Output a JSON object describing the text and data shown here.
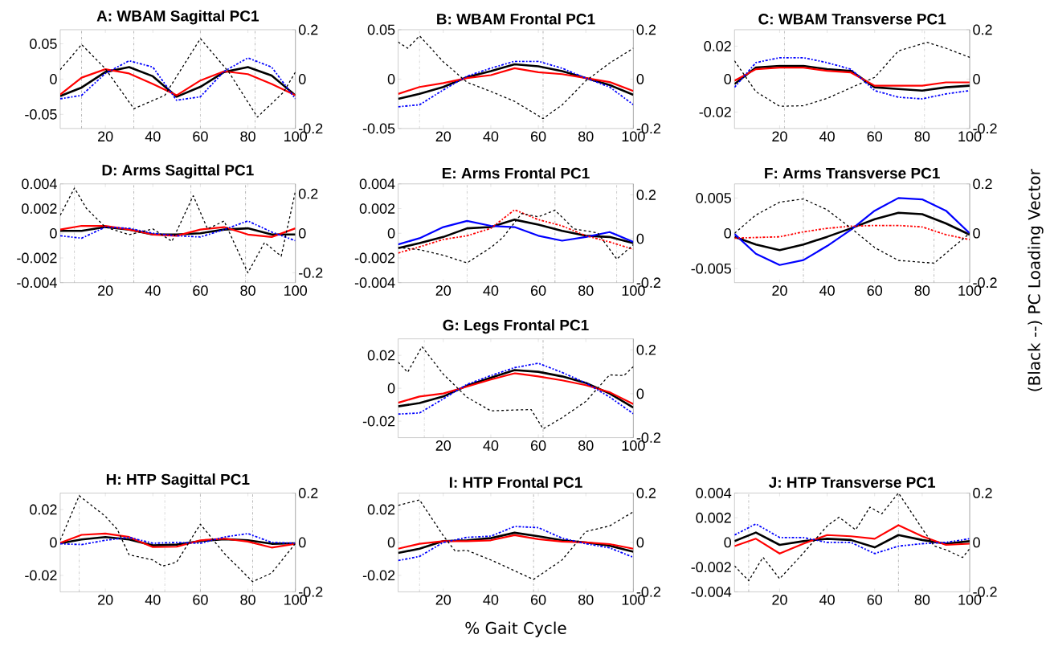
{
  "chart_data": [
    {
      "type": "line",
      "title": "A: WBAM Sagittal PC1",
      "x": [
        1,
        10,
        20,
        30,
        40,
        50,
        60,
        70,
        80,
        90,
        100
      ],
      "xlim": [
        1,
        100
      ],
      "xticks": [
        20,
        40,
        60,
        80,
        100
      ],
      "ylim": [
        -0.07,
        0.07
      ],
      "yticks": [
        -0.05,
        0,
        0.05
      ],
      "y2lim": [
        -0.2,
        0.2
      ],
      "y2ticks": [
        -0.2,
        0,
        0.2
      ],
      "ref_lines": [
        {
          "axis": "x",
          "value": 10,
          "color": "#808080",
          "line_style": "dashdot"
        },
        {
          "axis": "x",
          "value": 32,
          "color": "#808080",
          "line_style": "dashdot"
        },
        {
          "axis": "x",
          "value": 60,
          "color": "#808080",
          "line_style": "dashdot"
        },
        {
          "axis": "x",
          "value": 83,
          "color": "#808080",
          "line_style": "dashdot"
        }
      ],
      "series": [
        {
          "color": "#000000",
          "line_style": "solid",
          "values": [
            -0.024,
            -0.012,
            0.01,
            0.017,
            0.004,
            -0.025,
            -0.011,
            0.01,
            0.017,
            0.005,
            -0.023
          ]
        },
        {
          "color": "#ff0000",
          "line_style": "solid",
          "values": [
            -0.022,
            0.002,
            0.014,
            0.008,
            -0.007,
            -0.023,
            -0.002,
            0.011,
            0.007,
            -0.007,
            -0.023
          ]
        },
        {
          "color": "#0000ff",
          "line_style": "dashdot",
          "values": [
            -0.028,
            -0.023,
            0.008,
            0.026,
            0.017,
            -0.03,
            -0.025,
            0.011,
            0.03,
            0.017,
            -0.028
          ]
        },
        {
          "color": "#000000",
          "line_style": "dashed",
          "axis": "y2",
          "x": [
            1,
            10,
            20,
            32,
            45,
            60,
            72,
            84,
            95,
            100
          ],
          "values": [
            0.038,
            0.14,
            0.042,
            -0.12,
            -0.066,
            0.164,
            0.028,
            -0.154,
            -0.053,
            0.028
          ]
        }
      ]
    },
    {
      "type": "line",
      "title": "B: WBAM Frontal PC1",
      "x": [
        1,
        10,
        20,
        30,
        40,
        50,
        60,
        70,
        80,
        90,
        100
      ],
      "xlim": [
        1,
        100
      ],
      "xticks": [
        20,
        40,
        60,
        80,
        100
      ],
      "ylim": [
        -0.05,
        0.05
      ],
      "yticks": [
        -0.05,
        0,
        0.05
      ],
      "y2lim": [
        -0.2,
        0.2
      ],
      "y2ticks": [
        -0.2,
        0,
        0.2
      ],
      "ref_lines": [
        {
          "axis": "x",
          "value": 10,
          "color": "#808080",
          "line_style": "dashdot"
        },
        {
          "axis": "x",
          "value": 62,
          "color": "#808080",
          "line_style": "dashdot"
        }
      ],
      "series": [
        {
          "color": "#000000",
          "line_style": "solid",
          "values": [
            -0.02,
            -0.015,
            -0.008,
            0.002,
            0.008,
            0.015,
            0.013,
            0.008,
            0.001,
            -0.006,
            -0.016
          ]
        },
        {
          "color": "#ff0000",
          "line_style": "solid",
          "values": [
            -0.015,
            -0.008,
            -0.004,
            0.001,
            0.004,
            0.011,
            0.007,
            0.005,
            0.001,
            -0.003,
            -0.012
          ]
        },
        {
          "color": "#0000ff",
          "line_style": "dashdot",
          "values": [
            -0.028,
            -0.026,
            -0.011,
            0.003,
            0.011,
            0.018,
            0.018,
            0.011,
            0.001,
            -0.008,
            -0.026
          ]
        },
        {
          "color": "#000000",
          "line_style": "dashed",
          "axis": "y2",
          "x": [
            1,
            5,
            10,
            20,
            30,
            40,
            50,
            62,
            70,
            80,
            90,
            100
          ],
          "values": [
            0.15,
            0.125,
            0.175,
            0.07,
            -0.013,
            -0.05,
            -0.09,
            -0.16,
            -0.105,
            -0.007,
            0.065,
            0.125
          ]
        }
      ]
    },
    {
      "type": "line",
      "title": "C: WBAM Transverse PC1",
      "x": [
        1,
        10,
        20,
        30,
        40,
        50,
        60,
        70,
        80,
        90,
        100
      ],
      "xlim": [
        1,
        100
      ],
      "xticks": [
        20,
        40,
        60,
        80,
        100
      ],
      "ylim": [
        -0.03,
        0.03
      ],
      "yticks": [
        -0.02,
        0,
        0.02
      ],
      "y2lim": [
        -0.2,
        0.2
      ],
      "y2ticks": [
        -0.2,
        0,
        0.2
      ],
      "ref_lines": [
        {
          "axis": "x",
          "value": 22,
          "color": "#808080",
          "line_style": "dashdot"
        },
        {
          "axis": "x",
          "value": 81,
          "color": "#808080",
          "line_style": "dashdot"
        }
      ],
      "series": [
        {
          "color": "#000000",
          "line_style": "solid",
          "values": [
            -0.003,
            0.007,
            0.008,
            0.008,
            0.006,
            0.005,
            -0.005,
            -0.006,
            -0.007,
            -0.005,
            -0.004
          ]
        },
        {
          "color": "#ff0000",
          "line_style": "solid",
          "values": [
            -0.001,
            0.006,
            0.007,
            0.007,
            0.005,
            0.004,
            -0.004,
            -0.004,
            -0.004,
            -0.002,
            -0.002
          ]
        },
        {
          "color": "#0000ff",
          "line_style": "dashdot",
          "values": [
            -0.005,
            0.01,
            0.013,
            0.013,
            0.01,
            0.006,
            -0.007,
            -0.011,
            -0.012,
            -0.009,
            -0.007
          ]
        },
        {
          "color": "#000000",
          "line_style": "dashed",
          "axis": "y2",
          "x": [
            1,
            10,
            20,
            30,
            40,
            50,
            60,
            70,
            82,
            90,
            100
          ],
          "values": [
            0.074,
            -0.051,
            -0.11,
            -0.108,
            -0.078,
            -0.035,
            0.007,
            0.114,
            0.149,
            0.125,
            0.088
          ]
        }
      ]
    },
    {
      "type": "line",
      "title": "D: Arms Sagittal PC1",
      "x": [
        1,
        10,
        20,
        30,
        40,
        50,
        60,
        70,
        80,
        90,
        100
      ],
      "xlim": [
        1,
        100
      ],
      "xticks": [
        20,
        40,
        60,
        80,
        100
      ],
      "ylim": [
        -0.004,
        0.004
      ],
      "yticks": [
        -0.004,
        -0.002,
        0,
        0.002,
        0.004
      ],
      "y2lim": [
        -0.25,
        0.25
      ],
      "y2ticks": [
        -0.2,
        0,
        0.2
      ],
      "ref_lines": [
        {
          "axis": "x",
          "value": 7,
          "color": "#808080",
          "line_style": "dashdot"
        },
        {
          "axis": "x",
          "value": 32,
          "color": "#808080",
          "line_style": "dashdot"
        },
        {
          "axis": "x",
          "value": 56,
          "color": "#808080",
          "line_style": "dashdot"
        },
        {
          "axis": "x",
          "value": 79,
          "color": "#808080",
          "line_style": "dashdot"
        }
      ],
      "series": [
        {
          "color": "#000000",
          "line_style": "solid",
          "values": [
            0.0002,
            0.0002,
            0.0005,
            0.0003,
            -0.0001,
            -0.0001,
            0,
            0.0003,
            0.0004,
            -0.0001,
            -0.0001
          ]
        },
        {
          "color": "#ff0000",
          "line_style": "solid",
          "values": [
            0.0003,
            0.0006,
            0.0006,
            0.0003,
            -0.0001,
            -0.0002,
            0.0003,
            0.0005,
            -0.0001,
            -0.0003,
            0.0004
          ]
        },
        {
          "color": "#0000ff",
          "line_style": "dashdot",
          "values": [
            -0.0002,
            -0.0004,
            0.0005,
            0.0004,
            0,
            -0.0002,
            -0.0003,
            0.0003,
            0.001,
            0.0001,
            -0.0006
          ]
        },
        {
          "color": "#000000",
          "line_style": "dashed",
          "axis": "y2",
          "x": [
            1,
            7,
            12,
            20,
            30,
            40,
            48,
            57,
            63,
            70,
            80,
            87,
            94,
            100
          ],
          "values": [
            0.091,
            0.229,
            0.126,
            0.031,
            -0.007,
            0.022,
            -0.041,
            0.19,
            0.022,
            0.062,
            -0.2,
            -0.047,
            -0.116,
            0.212
          ]
        }
      ]
    },
    {
      "type": "line",
      "title": "E: Arms Frontal PC1",
      "x": [
        1,
        10,
        20,
        30,
        40,
        50,
        60,
        70,
        80,
        90,
        100
      ],
      "xlim": [
        1,
        100
      ],
      "xticks": [
        20,
        40,
        60,
        80,
        100
      ],
      "ylim": [
        -0.004,
        0.004
      ],
      "yticks": [
        -0.004,
        -0.002,
        0,
        0.002,
        0.004
      ],
      "y2lim": [
        -0.2,
        0.25
      ],
      "y2ticks": [
        -0.2,
        0,
        0.2
      ],
      "ref_lines": [
        {
          "axis": "x",
          "value": 30,
          "color": "#808080",
          "line_style": "dashdot"
        },
        {
          "axis": "x",
          "value": 67,
          "color": "#808080",
          "line_style": "dashdot"
        },
        {
          "axis": "x",
          "value": 93,
          "color": "#808080",
          "line_style": "dashdot"
        }
      ],
      "series": [
        {
          "color": "#000000",
          "line_style": "solid",
          "values": [
            -0.0012,
            -0.0008,
            -0.0003,
            0.0004,
            0.0005,
            0.0011,
            0.0007,
            0.0002,
            -0.0002,
            -0.0003,
            -0.0008
          ]
        },
        {
          "color": "#0000ff",
          "line_style": "solid",
          "values": [
            -0.0009,
            -0.0004,
            0.0005,
            0.001,
            0.0006,
            0.0005,
            -0.0002,
            -0.0006,
            -0.0003,
            0.0001,
            -0.0007
          ]
        },
        {
          "color": "#ff0000",
          "line_style": "dashdot",
          "values": [
            -0.0016,
            -0.0011,
            -0.0005,
            -0.0002,
            0.0004,
            0.0019,
            0.0011,
            0.0006,
            -0.0002,
            -0.0007,
            -0.0013
          ]
        },
        {
          "color": "#000000",
          "line_style": "dashed",
          "axis": "y2",
          "x": [
            1,
            10,
            20,
            30,
            40,
            45,
            53,
            60,
            67,
            75,
            85,
            93,
            100
          ],
          "values": [
            -0.04,
            -0.05,
            -0.075,
            -0.11,
            -0.04,
            0.005,
            0.115,
            0.1,
            0.13,
            0.045,
            0.027,
            -0.093,
            -0.027
          ]
        }
      ]
    },
    {
      "type": "line",
      "title": "F: Arms Transverse PC1",
      "y2label": "(Black --) PC Loading Vector",
      "x": [
        1,
        10,
        20,
        30,
        40,
        50,
        60,
        70,
        80,
        90,
        100
      ],
      "xlim": [
        1,
        100
      ],
      "xticks": [
        20,
        40,
        60,
        80,
        100
      ],
      "ylim": [
        -0.007,
        0.007
      ],
      "yticks": [
        -0.005,
        0,
        0.005
      ],
      "y2lim": [
        -0.2,
        0.2
      ],
      "y2ticks": [
        -0.2,
        0,
        0.2
      ],
      "ref_lines": [
        {
          "axis": "x",
          "value": 30,
          "color": "#808080",
          "line_style": "dashdot"
        },
        {
          "axis": "x",
          "value": 85,
          "color": "#808080",
          "line_style": "dashdot"
        }
      ],
      "series": [
        {
          "color": "#000000",
          "line_style": "solid",
          "values": [
            -0.0005,
            -0.0016,
            -0.0024,
            -0.0016,
            -0.0005,
            0.0007,
            0.002,
            0.0029,
            0.0027,
            0.0014,
            -0.0002
          ]
        },
        {
          "color": "#0000ff",
          "line_style": "solid",
          "values": [
            -0.0001,
            -0.0029,
            -0.0045,
            -0.0038,
            -0.0018,
            0.0005,
            0.0032,
            0.005,
            0.0048,
            0.0032,
            0
          ]
        },
        {
          "color": "#ff0000",
          "line_style": "dashdot",
          "values": [
            -0.0007,
            -0.0006,
            -0.0005,
            0.0002,
            0.0007,
            0.001,
            0.0011,
            0.0011,
            0.0009,
            -0.0002,
            -0.0009
          ]
        },
        {
          "color": "#000000",
          "line_style": "dashed",
          "axis": "y2",
          "x": [
            1,
            10,
            20,
            30,
            40,
            50,
            60,
            70,
            85,
            100
          ],
          "values": [
            0,
            0.074,
            0.126,
            0.139,
            0.095,
            0.021,
            -0.058,
            -0.11,
            -0.121,
            0
          ]
        }
      ]
    },
    {
      "type": "line",
      "title": "G: Legs Frontal PC1",
      "x": [
        1,
        10,
        20,
        30,
        40,
        50,
        60,
        70,
        80,
        90,
        100
      ],
      "xlim": [
        1,
        100
      ],
      "xticks": [
        20,
        40,
        60,
        80,
        100
      ],
      "ylim": [
        -0.03,
        0.03
      ],
      "yticks": [
        -0.02,
        0,
        0.02
      ],
      "y2lim": [
        -0.2,
        0.25
      ],
      "y2ticks": [
        -0.2,
        0,
        0.2
      ],
      "ref_lines": [
        {
          "axis": "x",
          "value": 12,
          "color": "#808080",
          "line_style": "dashdot"
        },
        {
          "axis": "x",
          "value": 62,
          "color": "#808080",
          "line_style": "dashdot"
        }
      ],
      "series": [
        {
          "color": "#000000",
          "line_style": "solid",
          "values": [
            -0.011,
            -0.009,
            -0.005,
            0.0016,
            0.0064,
            0.011,
            0.01,
            0.0072,
            0.0032,
            -0.0032,
            -0.0117
          ]
        },
        {
          "color": "#ff0000",
          "line_style": "solid",
          "values": [
            -0.0088,
            -0.005,
            -0.0032,
            0.001,
            0.0053,
            0.0091,
            0.0072,
            0.0048,
            0.0019,
            -0.0024,
            -0.0096
          ]
        },
        {
          "color": "#0000ff",
          "line_style": "dashdot",
          "values": [
            -0.0157,
            -0.015,
            -0.0064,
            0.0024,
            0.0077,
            0.0125,
            0.0152,
            0.0096,
            0.0032,
            -0.0053,
            -0.0155
          ]
        },
        {
          "color": "#000000",
          "line_style": "dashed",
          "axis": "y2",
          "x": [
            1,
            5,
            11,
            20,
            30,
            40,
            50,
            57,
            62,
            70,
            80,
            90,
            96,
            100
          ],
          "values": [
            0.144,
            0.098,
            0.215,
            0.089,
            -0.016,
            -0.078,
            -0.074,
            -0.072,
            -0.16,
            -0.109,
            -0.035,
            0.086,
            0.083,
            0.123
          ]
        }
      ]
    },
    {
      "type": "line",
      "title": "H: HTP Sagittal PC1",
      "x": [
        1,
        10,
        20,
        30,
        40,
        50,
        60,
        70,
        80,
        90,
        100
      ],
      "xlim": [
        1,
        100
      ],
      "xticks": [
        20,
        40,
        60,
        80,
        100
      ],
      "ylim": [
        -0.03,
        0.03
      ],
      "yticks": [
        -0.02,
        0,
        0.02
      ],
      "y2lim": [
        -0.2,
        0.2
      ],
      "y2ticks": [
        -0.2,
        0,
        0.2
      ],
      "ref_lines": [
        {
          "axis": "x",
          "value": 9,
          "color": "#808080",
          "line_style": "dashdot"
        },
        {
          "axis": "x",
          "value": 45,
          "color": "#808080",
          "line_style": "dashdot"
        },
        {
          "axis": "x",
          "value": 60,
          "color": "#808080",
          "line_style": "dashdot"
        },
        {
          "axis": "x",
          "value": 82,
          "color": "#808080",
          "line_style": "dashdot"
        }
      ],
      "series": [
        {
          "color": "#000000",
          "line_style": "solid",
          "values": [
            -0.0005,
            0.0018,
            0.0033,
            0.0018,
            -0.0018,
            -0.0013,
            0.0008,
            0.002,
            0.0013,
            -0.0008,
            -0.0005
          ]
        },
        {
          "color": "#ff0000",
          "line_style": "solid",
          "values": [
            -0.0003,
            0.0046,
            0.0054,
            0.0033,
            -0.0028,
            -0.0026,
            0.0013,
            0.0023,
            0.0005,
            -0.0031,
            -0.0008
          ]
        },
        {
          "color": "#0000ff",
          "line_style": "dashdot",
          "values": [
            -0.0008,
            -0.0013,
            0.0013,
            0.0031,
            -0.0005,
            0,
            -0.0005,
            0.0033,
            0.0054,
            0,
            -0.0005
          ]
        },
        {
          "color": "#000000",
          "line_style": "dashed",
          "axis": "y2",
          "x": [
            1,
            9,
            20,
            25,
            30,
            40,
            44,
            50,
            60,
            70,
            82,
            90,
            100
          ],
          "values": [
            0.009,
            0.189,
            0.106,
            0.053,
            -0.05,
            -0.071,
            -0.096,
            -0.08,
            0.074,
            -0.044,
            -0.159,
            -0.124,
            -0.004
          ]
        }
      ]
    },
    {
      "type": "line",
      "title": "I: HTP Frontal PC1",
      "xlabel": "% Gait Cycle",
      "x": [
        1,
        10,
        20,
        30,
        40,
        50,
        60,
        70,
        80,
        90,
        100
      ],
      "xlim": [
        1,
        100
      ],
      "xticks": [
        20,
        40,
        60,
        80,
        100
      ],
      "ylim": [
        -0.03,
        0.03
      ],
      "yticks": [
        -0.02,
        0,
        0.02
      ],
      "y2lim": [
        -0.2,
        0.2
      ],
      "y2ticks": [
        -0.2,
        0,
        0.2
      ],
      "ref_lines": [
        {
          "axis": "x",
          "value": 10,
          "color": "#808080",
          "line_style": "dashdot"
        },
        {
          "axis": "x",
          "value": 58,
          "color": "#808080",
          "line_style": "dashdot"
        }
      ],
      "series": [
        {
          "color": "#000000",
          "line_style": "solid",
          "values": [
            -0.0064,
            -0.0038,
            0.0008,
            0.0013,
            0.0026,
            0.0059,
            0.0038,
            0.0013,
            0,
            -0.002,
            -0.0056
          ]
        },
        {
          "color": "#ff0000",
          "line_style": "solid",
          "values": [
            -0.0038,
            -0.0008,
            0.0008,
            0.0008,
            0.0013,
            0.0044,
            0.002,
            0.0005,
            0,
            -0.001,
            -0.0038
          ]
        },
        {
          "color": "#0000ff",
          "line_style": "dashdot",
          "values": [
            -0.011,
            -0.0085,
            0,
            0.0031,
            0.0038,
            0.0097,
            0.009,
            0.0026,
            -0.0008,
            -0.0033,
            -0.009
          ]
        },
        {
          "color": "#000000",
          "line_style": "dashed",
          "axis": "y2",
          "x": [
            1,
            10,
            20,
            25,
            30,
            40,
            50,
            58,
            70,
            80,
            90,
            100
          ],
          "values": [
            0.15,
            0.172,
            0.027,
            -0.035,
            -0.032,
            -0.071,
            -0.115,
            -0.15,
            -0.071,
            0.044,
            0.067,
            0.124
          ]
        }
      ]
    },
    {
      "type": "line",
      "title": "J: HTP Transverse PC1",
      "x": [
        1,
        10,
        20,
        30,
        40,
        50,
        60,
        70,
        80,
        90,
        100
      ],
      "xlim": [
        1,
        100
      ],
      "xticks": [
        20,
        40,
        60,
        80,
        100
      ],
      "ylim": [
        -0.004,
        0.004
      ],
      "yticks": [
        -0.004,
        -0.002,
        0,
        0.002,
        0.004
      ],
      "y2lim": [
        -0.2,
        0.2
      ],
      "y2ticks": [
        -0.2,
        0,
        0.2
      ],
      "ref_lines": [
        {
          "axis": "x",
          "value": 7,
          "color": "#808080",
          "line_style": "dashdot"
        },
        {
          "axis": "x",
          "value": 70,
          "color": "#808080",
          "line_style": "dashdot"
        }
      ],
      "series": [
        {
          "color": "#000000",
          "line_style": "solid",
          "values": [
            0.0001,
            0.0008,
            -0.0002,
            0.0001,
            0.0003,
            0.0002,
            -0.0004,
            0.0006,
            0.0002,
            -0.0001,
            0.0001
          ]
        },
        {
          "color": "#ff0000",
          "line_style": "solid",
          "values": [
            -0.0003,
            0.0003,
            -0.0009,
            -0.0001,
            0.0006,
            0.0005,
            0.0003,
            0.0014,
            0.0005,
            -0.0002,
            -0.0001
          ]
        },
        {
          "color": "#0000ff",
          "line_style": "dashdot",
          "values": [
            0.0006,
            0.0015,
            0.0004,
            0.0004,
            0,
            0,
            -0.0009,
            -0.0003,
            -0.0001,
            0,
            0.0003
          ]
        },
        {
          "color": "#000000",
          "line_style": "dashed",
          "axis": "y2",
          "x": [
            1,
            7,
            13,
            20,
            30,
            40,
            45,
            52,
            58,
            63,
            70,
            80,
            85,
            90,
            97,
            100
          ],
          "values": [
            -0.095,
            -0.155,
            -0.06,
            -0.147,
            -0.043,
            0.067,
            0.102,
            0.051,
            0.143,
            0.116,
            0.2,
            0.056,
            -0.014,
            -0.03,
            -0.061,
            -0.025
          ]
        }
      ]
    }
  ]
}
